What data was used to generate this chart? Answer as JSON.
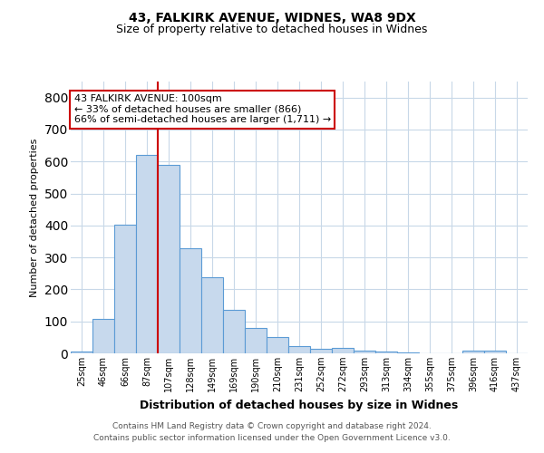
{
  "title": "43, FALKIRK AVENUE, WIDNES, WA8 9DX",
  "subtitle": "Size of property relative to detached houses in Widnes",
  "xlabel": "Distribution of detached houses by size in Widnes",
  "ylabel": "Number of detached properties",
  "categories": [
    "25sqm",
    "46sqm",
    "66sqm",
    "87sqm",
    "107sqm",
    "128sqm",
    "149sqm",
    "169sqm",
    "190sqm",
    "210sqm",
    "231sqm",
    "252sqm",
    "272sqm",
    "293sqm",
    "313sqm",
    "334sqm",
    "355sqm",
    "375sqm",
    "396sqm",
    "416sqm",
    "437sqm"
  ],
  "values": [
    7,
    107,
    403,
    620,
    590,
    330,
    238,
    135,
    78,
    50,
    23,
    15,
    18,
    8,
    5,
    3,
    1,
    1,
    8,
    8,
    0
  ],
  "bar_color": "#c7d9ed",
  "bar_edge_color": "#5b9bd5",
  "red_line_x": 3.5,
  "annotation_line1": "43 FALKIRK AVENUE: 100sqm",
  "annotation_line2": "← 33% of detached houses are smaller (866)",
  "annotation_line3": "66% of semi-detached houses are larger (1,711) →",
  "annotation_box_color": "white",
  "annotation_box_edge": "#cc0000",
  "ylim": [
    0,
    850
  ],
  "yticks": [
    0,
    100,
    200,
    300,
    400,
    500,
    600,
    700,
    800
  ],
  "footer_line1": "Contains HM Land Registry data © Crown copyright and database right 2024.",
  "footer_line2": "Contains public sector information licensed under the Open Government Licence v3.0.",
  "bg_color": "#ffffff",
  "grid_color": "#c8d8e8"
}
